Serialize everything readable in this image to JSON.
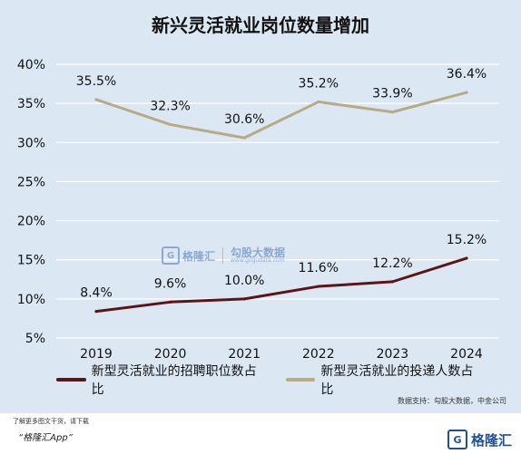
{
  "chart_data": {
    "type": "line",
    "title": "新兴灵活就业岗位数量增加",
    "categories": [
      "2019",
      "2020",
      "2021",
      "2022",
      "2023",
      "2024"
    ],
    "y_ticks": [
      "40%",
      "35%",
      "30%",
      "25%",
      "20%",
      "15%",
      "10%",
      "5%"
    ],
    "ylim": [
      5,
      40
    ],
    "grid": true,
    "legend_position": "bottom",
    "series": [
      {
        "name": "新型灵活就业的招聘职位数占比",
        "values": [
          8.4,
          9.6,
          10.0,
          11.6,
          12.2,
          15.2
        ],
        "labels": [
          "8.4%",
          "9.6%",
          "10.0%",
          "11.6%",
          "12.2%",
          "15.2%"
        ],
        "color": "#5e1416"
      },
      {
        "name": "新型灵活就业的投递人数占比",
        "values": [
          35.5,
          32.3,
          30.6,
          35.2,
          33.9,
          36.4
        ],
        "labels": [
          "35.5%",
          "32.3%",
          "30.6%",
          "35.2%",
          "33.9%",
          "36.4%"
        ],
        "color": "#b6ab85"
      }
    ]
  },
  "source_text": "数据支持：勾股大数据，中金公司",
  "watermark": {
    "logo_glyph": "G",
    "brand": "格隆汇",
    "brand2": "勾股大数据",
    "url": "www.gogudata.com"
  },
  "footer": {
    "note": "了解更多图文干货，请下载",
    "app": "“格隆汇App”",
    "logo_glyph": "G",
    "logo_text": "格隆汇"
  }
}
